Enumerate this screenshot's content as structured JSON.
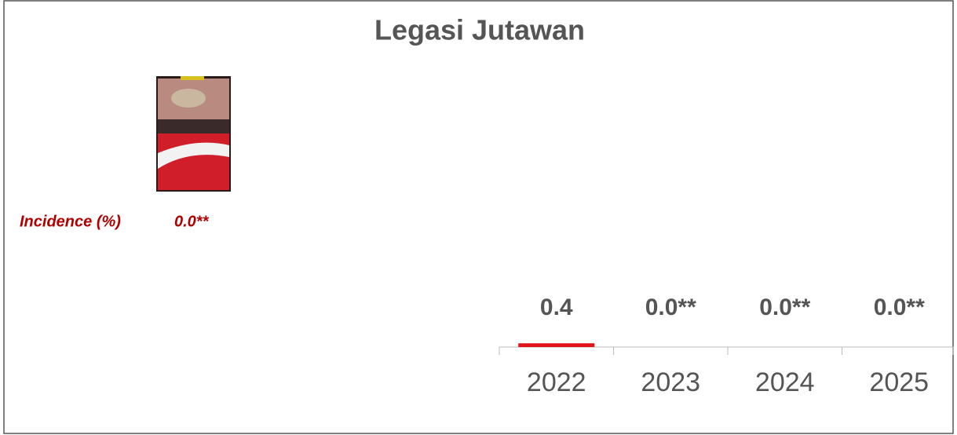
{
  "chart_data": {
    "type": "bar",
    "title": "Legasi Jutawan",
    "categories": [
      "2022",
      "2023",
      "2024",
      "2025"
    ],
    "values": [
      0.4,
      0.0,
      0.0,
      0.0
    ],
    "value_labels": [
      "0.4",
      "0.0**",
      "0.0**",
      "0.0**"
    ],
    "color": "#e0141b",
    "annotations": [
      "Incidence (%)",
      "0.0**"
    ]
  }
}
